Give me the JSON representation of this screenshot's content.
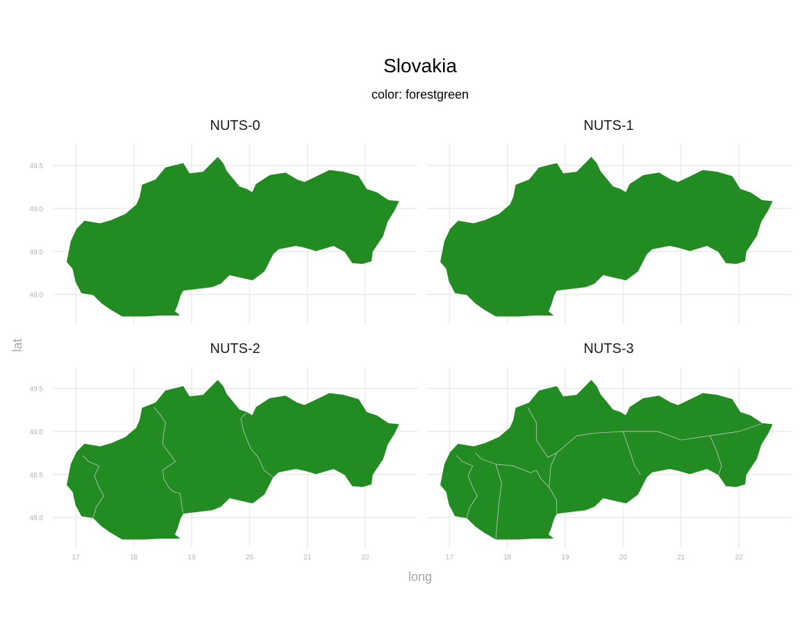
{
  "chart_data": {
    "type": "map",
    "title": "Slovakia",
    "subtitle": "color: forestgreen",
    "xlabel": "long",
    "ylabel": "lat",
    "x_ticks": [
      17,
      18,
      19,
      20,
      21,
      22
    ],
    "y_ticks": [
      48.0,
      48.5,
      49.0,
      49.5
    ],
    "y_tick_labels": [
      "48.0",
      "48.5",
      "49.0",
      "49.5"
    ],
    "xlim": [
      16.6,
      22.9
    ],
    "ylim": [
      47.65,
      49.75
    ],
    "grid": true,
    "fill_color": "#228b22",
    "border_color": "#d9d9d9",
    "panels": [
      {
        "label": "NUTS-0",
        "regions": 1
      },
      {
        "label": "NUTS-1",
        "regions": 1
      },
      {
        "label": "NUTS-2",
        "regions": 4
      },
      {
        "label": "NUTS-3",
        "regions": 8
      }
    ],
    "outline": [
      [
        16.85,
        48.38
      ],
      [
        16.92,
        48.62
      ],
      [
        17.02,
        48.76
      ],
      [
        17.15,
        48.85
      ],
      [
        17.42,
        48.82
      ],
      [
        17.62,
        48.86
      ],
      [
        17.86,
        48.93
      ],
      [
        18.05,
        49.04
      ],
      [
        18.11,
        49.13
      ],
      [
        18.15,
        49.27
      ],
      [
        18.38,
        49.33
      ],
      [
        18.55,
        49.47
      ],
      [
        18.85,
        49.52
      ],
      [
        18.96,
        49.4
      ],
      [
        19.2,
        49.42
      ],
      [
        19.45,
        49.59
      ],
      [
        19.54,
        49.52
      ],
      [
        19.6,
        49.43
      ],
      [
        19.82,
        49.25
      ],
      [
        19.95,
        49.22
      ],
      [
        20.05,
        49.18
      ],
      [
        20.12,
        49.28
      ],
      [
        20.35,
        49.38
      ],
      [
        20.62,
        49.41
      ],
      [
        20.82,
        49.33
      ],
      [
        20.95,
        49.3
      ],
      [
        21.2,
        49.38
      ],
      [
        21.38,
        49.44
      ],
      [
        21.62,
        49.42
      ],
      [
        21.88,
        49.37
      ],
      [
        22.02,
        49.22
      ],
      [
        22.2,
        49.18
      ],
      [
        22.4,
        49.09
      ],
      [
        22.57,
        49.08
      ],
      [
        22.5,
        48.98
      ],
      [
        22.38,
        48.85
      ],
      [
        22.3,
        48.68
      ],
      [
        22.12,
        48.5
      ],
      [
        22.1,
        48.39
      ],
      [
        21.95,
        48.36
      ],
      [
        21.78,
        48.37
      ],
      [
        21.65,
        48.5
      ],
      [
        21.45,
        48.57
      ],
      [
        21.15,
        48.51
      ],
      [
        20.95,
        48.55
      ],
      [
        20.8,
        48.57
      ],
      [
        20.5,
        48.53
      ],
      [
        20.4,
        48.47
      ],
      [
        20.25,
        48.27
      ],
      [
        20.05,
        48.17
      ],
      [
        19.85,
        48.2
      ],
      [
        19.65,
        48.23
      ],
      [
        19.5,
        48.13
      ],
      [
        19.35,
        48.09
      ],
      [
        19.1,
        48.07
      ],
      [
        18.85,
        48.05
      ],
      [
        18.8,
        47.99
      ],
      [
        18.75,
        47.88
      ],
      [
        18.7,
        47.8
      ],
      [
        18.78,
        47.76
      ],
      [
        18.45,
        47.76
      ],
      [
        18.2,
        47.75
      ],
      [
        18.0,
        47.75
      ],
      [
        17.8,
        47.75
      ],
      [
        17.6,
        47.83
      ],
      [
        17.45,
        47.9
      ],
      [
        17.3,
        48.0
      ],
      [
        17.1,
        48.02
      ],
      [
        17.0,
        48.15
      ],
      [
        16.95,
        48.3
      ]
    ],
    "nuts2_borders": [
      [
        [
          17.12,
          48.72
        ],
        [
          17.22,
          48.65
        ],
        [
          17.4,
          48.6
        ],
        [
          17.32,
          48.48
        ],
        [
          17.4,
          48.35
        ],
        [
          17.48,
          48.25
        ],
        [
          17.35,
          48.12
        ],
        [
          17.3,
          48.0
        ]
      ],
      [
        [
          18.35,
          49.28
        ],
        [
          18.45,
          49.2
        ],
        [
          18.55,
          49.1
        ],
        [
          18.52,
          49.0
        ],
        [
          18.5,
          48.85
        ],
        [
          18.72,
          48.65
        ],
        [
          18.5,
          48.55
        ],
        [
          18.52,
          48.45
        ],
        [
          18.6,
          48.35
        ],
        [
          18.68,
          48.3
        ],
        [
          18.8,
          48.28
        ],
        [
          18.85,
          48.05
        ]
      ],
      [
        [
          19.95,
          49.22
        ],
        [
          19.85,
          49.15
        ],
        [
          19.9,
          49.0
        ],
        [
          20.02,
          48.8
        ],
        [
          20.15,
          48.7
        ],
        [
          20.25,
          48.55
        ],
        [
          20.4,
          48.47
        ]
      ]
    ],
    "nuts3_borders": [
      [
        [
          17.12,
          48.72
        ],
        [
          17.22,
          48.65
        ],
        [
          17.4,
          48.6
        ],
        [
          17.32,
          48.48
        ],
        [
          17.4,
          48.35
        ],
        [
          17.48,
          48.25
        ],
        [
          17.35,
          48.12
        ],
        [
          17.3,
          48.0
        ]
      ],
      [
        [
          17.45,
          48.75
        ],
        [
          17.55,
          48.68
        ],
        [
          17.8,
          48.62
        ],
        [
          18.1,
          48.6
        ],
        [
          18.4,
          48.52
        ],
        [
          18.5,
          48.55
        ]
      ],
      [
        [
          17.8,
          48.62
        ],
        [
          17.9,
          48.4
        ],
        [
          17.85,
          48.15
        ],
        [
          17.8,
          47.75
        ]
      ],
      [
        [
          18.35,
          49.28
        ],
        [
          18.5,
          49.1
        ],
        [
          18.5,
          48.9
        ],
        [
          18.7,
          48.7
        ],
        [
          18.85,
          48.75
        ]
      ],
      [
        [
          18.5,
          48.55
        ],
        [
          18.58,
          48.45
        ],
        [
          18.72,
          48.35
        ],
        [
          18.85,
          48.2
        ],
        [
          18.85,
          48.05
        ]
      ],
      [
        [
          18.85,
          48.75
        ],
        [
          19.2,
          48.95
        ],
        [
          19.5,
          48.98
        ],
        [
          20.0,
          49.0
        ],
        [
          20.6,
          49.0
        ],
        [
          21.0,
          48.9
        ],
        [
          21.5,
          48.95
        ],
        [
          22.0,
          49.0
        ],
        [
          22.4,
          49.09
        ]
      ],
      [
        [
          18.85,
          48.75
        ],
        [
          18.75,
          48.6
        ],
        [
          18.72,
          48.35
        ]
      ],
      [
        [
          20.0,
          49.0
        ],
        [
          20.1,
          48.8
        ],
        [
          20.2,
          48.6
        ],
        [
          20.3,
          48.5
        ]
      ],
      [
        [
          21.5,
          48.95
        ],
        [
          21.6,
          48.8
        ],
        [
          21.7,
          48.6
        ],
        [
          21.65,
          48.5
        ]
      ]
    ]
  }
}
